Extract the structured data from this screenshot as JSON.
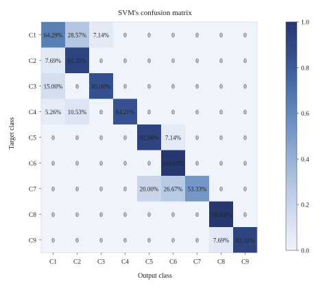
{
  "chart_data": {
    "type": "heatmap",
    "title": "SVM's confusion matrix",
    "xlabel": "Output class",
    "ylabel": "Target class",
    "x_categories": [
      "C1",
      "C2",
      "C3",
      "C4",
      "C5",
      "C6",
      "C7",
      "C8",
      "C9"
    ],
    "y_categories": [
      "C1",
      "C2",
      "C3",
      "C4",
      "C5",
      "C6",
      "C7",
      "C8",
      "C9"
    ],
    "values": [
      [
        0.6429,
        0.2857,
        0.0714,
        0,
        0,
        0,
        0,
        0,
        0
      ],
      [
        0.0769,
        0.9231,
        0,
        0,
        0,
        0,
        0,
        0,
        0
      ],
      [
        0.15,
        0,
        0.85,
        0,
        0,
        0,
        0,
        0,
        0
      ],
      [
        0.0526,
        0.1053,
        0,
        0.8421,
        0,
        0,
        0,
        0,
        0
      ],
      [
        0,
        0,
        0,
        0,
        0.9286,
        0.0714,
        0,
        0,
        0
      ],
      [
        0,
        0,
        0,
        0,
        0,
        1.0,
        0,
        0,
        0
      ],
      [
        0,
        0,
        0,
        0,
        0.2,
        0.2667,
        0.5333,
        0,
        0
      ],
      [
        0,
        0,
        0,
        0,
        0,
        0,
        0,
        1.0,
        0
      ],
      [
        0,
        0,
        0,
        0,
        0,
        0,
        0,
        0.0769,
        0.9231
      ]
    ],
    "labels": [
      [
        "64.29%",
        "28.57%",
        "7.14%",
        "0",
        "0",
        "0",
        "0",
        "0",
        "0"
      ],
      [
        "7.69%",
        "92.31%",
        "0",
        "0",
        "0",
        "0",
        "0",
        "0",
        "0"
      ],
      [
        "15.00%",
        "0",
        "85.00%",
        "0",
        "0",
        "0",
        "0",
        "0",
        "0"
      ],
      [
        "5.26%",
        "10.53%",
        "0",
        "84.21%",
        "0",
        "0",
        "0",
        "0",
        "0"
      ],
      [
        "0",
        "0",
        "0",
        "0",
        "92.86%",
        "7.14%",
        "0",
        "0",
        "0"
      ],
      [
        "0",
        "0",
        "0",
        "0",
        "0",
        "100.00%",
        "0",
        "0",
        "0"
      ],
      [
        "0",
        "0",
        "0",
        "0",
        "20.00%",
        "26.67%",
        "53.33%",
        "0",
        "0"
      ],
      [
        "0",
        "0",
        "0",
        "0",
        "0",
        "0",
        "0",
        "100.00%",
        "0"
      ],
      [
        "0",
        "0",
        "0",
        "0",
        "0",
        "0",
        "0",
        "7.69%",
        "92.31%"
      ]
    ],
    "colorbar": {
      "range": [
        0,
        1
      ],
      "ticks": [
        "0.0",
        "0.2",
        "0.4",
        "0.6",
        "0.8",
        "1.0"
      ],
      "colormap": "Blues"
    }
  }
}
